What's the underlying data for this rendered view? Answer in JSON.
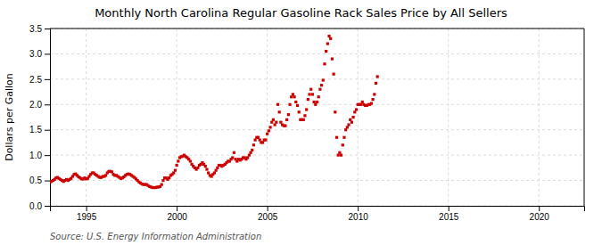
{
  "chart_data": {
    "type": "scatter",
    "title": "Monthly North Carolina Regular Gasoline Rack Sales Price by All Sellers",
    "y_label": "Dollars per Gallon",
    "source": "Source: U.S. Energy Information Administration",
    "color": "#CC0000",
    "marker": "square",
    "grid": true,
    "xlim": [
      1993.0,
      2022.5
    ],
    "ylim": [
      0.0,
      3.5
    ],
    "xticks": [
      1995,
      2000,
      2005,
      2010,
      2015,
      2020
    ],
    "yticks": [
      {
        "value": 0.0,
        "label": "0.0"
      },
      0.5,
      {
        "value": 1.0,
        "label": "1.0"
      },
      1.5,
      {
        "value": 2.0,
        "label": "2.0"
      },
      2.5,
      {
        "value": 3.0,
        "label": "3.0"
      },
      3.5
    ],
    "x": [
      1993.0,
      1993.083,
      1993.167,
      1993.25,
      1993.333,
      1993.417,
      1993.5,
      1993.583,
      1993.667,
      1993.75,
      1993.833,
      1993.917,
      1994.0,
      1994.083,
      1994.167,
      1994.25,
      1994.333,
      1994.417,
      1994.5,
      1994.583,
      1994.667,
      1994.75,
      1994.833,
      1994.917,
      1995.0,
      1995.083,
      1995.167,
      1995.25,
      1995.333,
      1995.417,
      1995.5,
      1995.583,
      1995.667,
      1995.75,
      1995.833,
      1995.917,
      1996.0,
      1996.083,
      1996.167,
      1996.25,
      1996.333,
      1996.417,
      1996.5,
      1996.583,
      1996.667,
      1996.75,
      1996.833,
      1996.917,
      1997.0,
      1997.083,
      1997.167,
      1997.25,
      1997.333,
      1997.417,
      1997.5,
      1997.583,
      1997.667,
      1997.75,
      1997.833,
      1997.917,
      1998.0,
      1998.083,
      1998.167,
      1998.25,
      1998.333,
      1998.417,
      1998.5,
      1998.583,
      1998.667,
      1998.75,
      1998.833,
      1998.917,
      1999.0,
      1999.083,
      1999.167,
      1999.25,
      1999.333,
      1999.417,
      1999.5,
      1999.583,
      1999.667,
      1999.75,
      1999.833,
      1999.917,
      2000.0,
      2000.083,
      2000.167,
      2000.25,
      2000.333,
      2000.417,
      2000.5,
      2000.583,
      2000.667,
      2000.75,
      2000.833,
      2000.917,
      2001.0,
      2001.083,
      2001.167,
      2001.25,
      2001.333,
      2001.417,
      2001.5,
      2001.583,
      2001.667,
      2001.75,
      2001.833,
      2001.917,
      2002.0,
      2002.083,
      2002.167,
      2002.25,
      2002.333,
      2002.417,
      2002.5,
      2002.583,
      2002.667,
      2002.75,
      2002.833,
      2002.917,
      2003.0,
      2003.083,
      2003.167,
      2003.25,
      2003.333,
      2003.417,
      2003.5,
      2003.583,
      2003.667,
      2003.75,
      2003.833,
      2003.917,
      2004.0,
      2004.083,
      2004.167,
      2004.25,
      2004.333,
      2004.417,
      2004.5,
      2004.583,
      2004.667,
      2004.75,
      2004.833,
      2004.917,
      2005.0,
      2005.083,
      2005.167,
      2005.25,
      2005.333,
      2005.417,
      2005.5,
      2005.583,
      2005.667,
      2005.75,
      2005.833,
      2005.917,
      2006.0,
      2006.083,
      2006.167,
      2006.25,
      2006.333,
      2006.417,
      2006.5,
      2006.583,
      2006.667,
      2006.75,
      2006.833,
      2006.917,
      2007.0,
      2007.083,
      2007.167,
      2007.25,
      2007.333,
      2007.417,
      2007.5,
      2007.583,
      2007.667,
      2007.75,
      2007.833,
      2007.917,
      2008.0,
      2008.083,
      2008.167,
      2008.25,
      2008.333,
      2008.417,
      2008.5,
      2008.583,
      2008.667,
      2008.75,
      2008.833,
      2008.917,
      2009.0,
      2009.083,
      2009.167,
      2009.25,
      2009.333,
      2009.417,
      2009.5,
      2009.583,
      2009.667,
      2009.75,
      2009.833,
      2009.917,
      2010.0,
      2010.083,
      2010.167,
      2010.25,
      2010.333,
      2010.417,
      2010.5,
      2010.583,
      2010.667,
      2010.75,
      2010.833,
      2010.917,
      2011.0,
      2011.083
    ],
    "values": [
      0.47,
      0.48,
      0.5,
      0.52,
      0.55,
      0.56,
      0.54,
      0.52,
      0.5,
      0.48,
      0.5,
      0.52,
      0.5,
      0.52,
      0.54,
      0.58,
      0.62,
      0.63,
      0.6,
      0.57,
      0.55,
      0.53,
      0.53,
      0.55,
      0.53,
      0.54,
      0.58,
      0.62,
      0.65,
      0.65,
      0.62,
      0.6,
      0.58,
      0.56,
      0.56,
      0.58,
      0.58,
      0.6,
      0.65,
      0.68,
      0.68,
      0.67,
      0.62,
      0.6,
      0.6,
      0.58,
      0.56,
      0.54,
      0.55,
      0.57,
      0.6,
      0.62,
      0.63,
      0.62,
      0.6,
      0.58,
      0.56,
      0.53,
      0.5,
      0.47,
      0.45,
      0.43,
      0.42,
      0.42,
      0.42,
      0.4,
      0.38,
      0.37,
      0.36,
      0.36,
      0.36,
      0.37,
      0.37,
      0.38,
      0.42,
      0.5,
      0.55,
      0.55,
      0.52,
      0.55,
      0.6,
      0.62,
      0.65,
      0.7,
      0.8,
      0.88,
      0.95,
      0.97,
      0.98,
      1.0,
      0.97,
      0.95,
      0.92,
      0.88,
      0.82,
      0.78,
      0.75,
      0.72,
      0.75,
      0.8,
      0.82,
      0.85,
      0.82,
      0.78,
      0.72,
      0.65,
      0.6,
      0.58,
      0.62,
      0.65,
      0.7,
      0.75,
      0.8,
      0.8,
      0.78,
      0.8,
      0.82,
      0.85,
      0.88,
      0.88,
      0.92,
      0.95,
      1.05,
      0.92,
      0.88,
      0.92,
      0.9,
      0.92,
      0.95,
      0.95,
      0.92,
      0.95,
      1.0,
      1.05,
      1.1,
      1.2,
      1.3,
      1.35,
      1.35,
      1.3,
      1.25,
      1.25,
      1.3,
      1.3,
      1.42,
      1.48,
      1.55,
      1.65,
      1.7,
      1.6,
      1.65,
      2.0,
      1.85,
      1.65,
      1.6,
      1.58,
      1.58,
      1.7,
      1.8,
      2.0,
      2.15,
      2.2,
      2.15,
      2.05,
      1.98,
      1.85,
      1.7,
      1.7,
      1.7,
      1.78,
      1.9,
      2.1,
      2.2,
      2.3,
      2.2,
      2.05,
      2.0,
      2.05,
      2.15,
      2.3,
      2.38,
      2.48,
      2.8,
      3.05,
      3.2,
      3.35,
      3.3,
      2.9,
      2.6,
      1.85,
      1.35,
      1.0,
      1.05,
      1.0,
      1.2,
      1.35,
      1.5,
      1.55,
      1.6,
      1.7,
      1.65,
      1.75,
      1.85,
      1.9,
      2.0,
      2.0,
      2.0,
      2.05,
      2.0,
      1.98,
      1.98,
      2.0,
      2.0,
      2.02,
      2.1,
      2.2,
      2.42,
      2.55
    ]
  }
}
